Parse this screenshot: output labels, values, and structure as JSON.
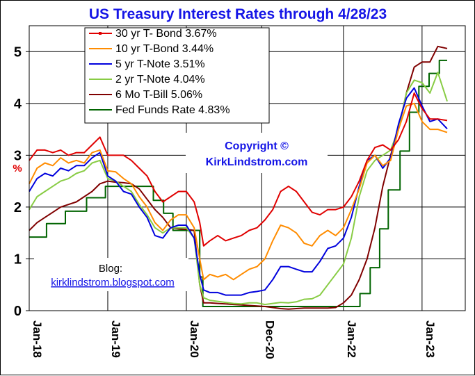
{
  "chart_data": {
    "type": "line",
    "title": "US Treasury Interest Rates through 4/28/23",
    "ylabel": "%",
    "ylim": [
      0,
      5.5
    ],
    "yticks": [
      0,
      1,
      2,
      3,
      4,
      5
    ],
    "xticks": [
      "Jan-18",
      "Jan-19",
      "Jan-20",
      "Dec-20",
      "Jan-22",
      "Jan-23"
    ],
    "grid": true,
    "legend_position": "top-left",
    "annotation_copyright": [
      "Copyright ©",
      "KirkLindstrom.com"
    ],
    "annotation_blog": [
      "Blog:",
      "kirklindstrom.blogspot.com"
    ],
    "series": [
      {
        "name": "30 yr T- Bond 3.67%",
        "color": "#e00000",
        "x": [
          2018.0,
          2018.1,
          2018.2,
          2018.3,
          2018.4,
          2018.5,
          2018.6,
          2018.7,
          2018.8,
          2018.9,
          2019.0,
          2019.1,
          2019.2,
          2019.3,
          2019.4,
          2019.5,
          2019.6,
          2019.7,
          2019.8,
          2019.9,
          2020.0,
          2020.1,
          2020.17,
          2020.22,
          2020.3,
          2020.4,
          2020.5,
          2020.6,
          2020.7,
          2020.8,
          2020.9,
          2021.0,
          2021.1,
          2021.2,
          2021.3,
          2021.4,
          2021.5,
          2021.6,
          2021.7,
          2021.8,
          2021.9,
          2022.0,
          2022.1,
          2022.2,
          2022.3,
          2022.4,
          2022.5,
          2022.6,
          2022.7,
          2022.8,
          2022.9,
          2023.0,
          2023.1,
          2023.2,
          2023.32
        ],
        "y": [
          2.9,
          3.1,
          3.1,
          3.05,
          3.1,
          3.0,
          3.05,
          3.05,
          3.2,
          3.35,
          3.0,
          3.0,
          3.0,
          2.9,
          2.75,
          2.6,
          2.3,
          2.1,
          2.2,
          2.3,
          2.3,
          2.1,
          1.7,
          1.25,
          1.35,
          1.45,
          1.35,
          1.4,
          1.45,
          1.55,
          1.6,
          1.75,
          1.95,
          2.3,
          2.4,
          2.3,
          2.1,
          1.9,
          1.85,
          1.95,
          1.95,
          2.0,
          2.2,
          2.5,
          2.9,
          3.15,
          3.2,
          3.1,
          3.3,
          3.65,
          4.2,
          3.9,
          3.7,
          3.7,
          3.67
        ]
      },
      {
        "name": "10 yr T-Bond 3.44%",
        "color": "#ff8c00",
        "x": [
          2018.0,
          2018.1,
          2018.2,
          2018.3,
          2018.4,
          2018.5,
          2018.6,
          2018.7,
          2018.8,
          2018.9,
          2019.0,
          2019.1,
          2019.2,
          2019.3,
          2019.4,
          2019.5,
          2019.6,
          2019.7,
          2019.8,
          2019.9,
          2020.0,
          2020.1,
          2020.17,
          2020.22,
          2020.3,
          2020.4,
          2020.5,
          2020.6,
          2020.7,
          2020.8,
          2020.9,
          2021.0,
          2021.1,
          2021.2,
          2021.3,
          2021.4,
          2021.5,
          2021.6,
          2021.7,
          2021.8,
          2021.9,
          2022.0,
          2022.1,
          2022.2,
          2022.3,
          2022.4,
          2022.5,
          2022.6,
          2022.7,
          2022.8,
          2022.9,
          2023.0,
          2023.1,
          2023.2,
          2023.32
        ],
        "y": [
          2.45,
          2.75,
          2.85,
          2.8,
          2.95,
          2.85,
          2.9,
          2.85,
          3.05,
          3.1,
          2.7,
          2.68,
          2.55,
          2.45,
          2.2,
          2.0,
          1.7,
          1.55,
          1.75,
          1.85,
          1.85,
          1.6,
          1.0,
          0.6,
          0.7,
          0.65,
          0.7,
          0.6,
          0.7,
          0.8,
          0.85,
          1.0,
          1.35,
          1.65,
          1.6,
          1.5,
          1.3,
          1.25,
          1.45,
          1.55,
          1.45,
          1.6,
          1.95,
          2.35,
          2.85,
          3.0,
          2.8,
          2.9,
          3.5,
          3.95,
          4.0,
          3.65,
          3.5,
          3.5,
          3.44
        ]
      },
      {
        "name": "5 yr T-Note 3.51%",
        "color": "#0000dd",
        "x": [
          2018.0,
          2018.1,
          2018.2,
          2018.3,
          2018.4,
          2018.5,
          2018.6,
          2018.7,
          2018.8,
          2018.9,
          2019.0,
          2019.1,
          2019.2,
          2019.3,
          2019.4,
          2019.5,
          2019.6,
          2019.7,
          2019.8,
          2019.9,
          2020.0,
          2020.1,
          2020.17,
          2020.22,
          2020.3,
          2020.4,
          2020.5,
          2020.6,
          2020.7,
          2020.8,
          2020.9,
          2021.0,
          2021.1,
          2021.2,
          2021.3,
          2021.4,
          2021.5,
          2021.6,
          2021.7,
          2021.8,
          2021.9,
          2022.0,
          2022.1,
          2022.2,
          2022.3,
          2022.4,
          2022.5,
          2022.6,
          2022.7,
          2022.8,
          2022.9,
          2023.0,
          2023.1,
          2023.2,
          2023.32
        ],
        "y": [
          2.3,
          2.55,
          2.65,
          2.6,
          2.75,
          2.7,
          2.8,
          2.8,
          2.95,
          3.05,
          2.6,
          2.5,
          2.3,
          2.25,
          2.0,
          1.8,
          1.45,
          1.4,
          1.6,
          1.65,
          1.65,
          1.4,
          0.7,
          0.4,
          0.35,
          0.35,
          0.3,
          0.3,
          0.3,
          0.35,
          0.37,
          0.4,
          0.6,
          0.85,
          0.85,
          0.8,
          0.75,
          0.75,
          0.95,
          1.2,
          1.25,
          1.4,
          1.8,
          2.4,
          2.9,
          3.0,
          2.75,
          2.95,
          3.6,
          4.1,
          4.3,
          3.95,
          3.65,
          3.7,
          3.51
        ]
      },
      {
        "name": "2 yr T-Note 4.04%",
        "color": "#88cc44",
        "x": [
          2018.0,
          2018.1,
          2018.2,
          2018.3,
          2018.4,
          2018.5,
          2018.6,
          2018.7,
          2018.8,
          2018.9,
          2019.0,
          2019.1,
          2019.2,
          2019.3,
          2019.4,
          2019.5,
          2019.6,
          2019.7,
          2019.8,
          2019.9,
          2020.0,
          2020.1,
          2020.17,
          2020.22,
          2020.3,
          2020.4,
          2020.5,
          2020.6,
          2020.7,
          2020.8,
          2020.9,
          2021.0,
          2021.1,
          2021.2,
          2021.3,
          2021.4,
          2021.5,
          2021.6,
          2021.7,
          2021.8,
          2021.9,
          2022.0,
          2022.1,
          2022.2,
          2022.3,
          2022.4,
          2022.5,
          2022.6,
          2022.7,
          2022.8,
          2022.9,
          2023.0,
          2023.1,
          2023.2,
          2023.32
        ],
        "y": [
          1.95,
          2.2,
          2.3,
          2.4,
          2.5,
          2.55,
          2.65,
          2.7,
          2.85,
          2.9,
          2.55,
          2.5,
          2.4,
          2.3,
          2.05,
          1.85,
          1.6,
          1.5,
          1.6,
          1.6,
          1.6,
          1.4,
          0.5,
          0.25,
          0.2,
          0.18,
          0.16,
          0.14,
          0.13,
          0.15,
          0.15,
          0.12,
          0.14,
          0.16,
          0.15,
          0.17,
          0.22,
          0.23,
          0.3,
          0.5,
          0.7,
          0.9,
          1.4,
          2.2,
          2.7,
          2.9,
          3.0,
          3.1,
          3.5,
          4.2,
          4.45,
          4.4,
          4.2,
          4.6,
          4.04
        ]
      },
      {
        "name": "6 Mo T-Bill 5.06%",
        "color": "#800000",
        "x": [
          2018.0,
          2018.1,
          2018.2,
          2018.3,
          2018.4,
          2018.5,
          2018.6,
          2018.7,
          2018.8,
          2018.9,
          2019.0,
          2019.1,
          2019.2,
          2019.3,
          2019.4,
          2019.5,
          2019.6,
          2019.7,
          2019.8,
          2019.9,
          2020.0,
          2020.1,
          2020.17,
          2020.22,
          2020.3,
          2020.4,
          2020.5,
          2020.6,
          2020.7,
          2020.8,
          2020.9,
          2021.0,
          2021.1,
          2021.2,
          2021.3,
          2021.4,
          2021.5,
          2021.6,
          2021.7,
          2021.8,
          2021.9,
          2022.0,
          2022.1,
          2022.2,
          2022.3,
          2022.4,
          2022.5,
          2022.6,
          2022.7,
          2022.8,
          2022.9,
          2023.0,
          2023.1,
          2023.2,
          2023.32
        ],
        "y": [
          1.55,
          1.7,
          1.8,
          1.9,
          2.0,
          2.05,
          2.1,
          2.2,
          2.3,
          2.45,
          2.5,
          2.48,
          2.47,
          2.45,
          2.35,
          2.15,
          1.95,
          1.8,
          1.6,
          1.58,
          1.57,
          1.55,
          0.5,
          0.15,
          0.15,
          0.14,
          0.13,
          0.12,
          0.11,
          0.1,
          0.09,
          0.08,
          0.06,
          0.04,
          0.03,
          0.04,
          0.05,
          0.05,
          0.05,
          0.05,
          0.06,
          0.15,
          0.3,
          0.6,
          1.0,
          1.6,
          2.4,
          3.0,
          3.5,
          4.2,
          4.7,
          4.8,
          4.8,
          5.1,
          5.06
        ]
      },
      {
        "name": "Fed Funds Rate 4.83%",
        "color": "#006400",
        "x": [
          2018.0,
          2018.22,
          2018.22,
          2018.46,
          2018.46,
          2018.73,
          2018.73,
          2018.97,
          2018.97,
          2019.58,
          2019.58,
          2019.71,
          2019.71,
          2019.83,
          2019.83,
          2020.17,
          2020.17,
          2020.21,
          2020.21,
          2022.21,
          2022.21,
          2022.34,
          2022.34,
          2022.46,
          2022.46,
          2022.57,
          2022.57,
          2022.72,
          2022.72,
          2022.84,
          2022.84,
          2022.96,
          2022.96,
          2023.09,
          2023.09,
          2023.22,
          2023.22,
          2023.32
        ],
        "y": [
          1.42,
          1.42,
          1.68,
          1.68,
          1.92,
          1.92,
          2.18,
          2.18,
          2.4,
          2.4,
          2.13,
          2.13,
          1.88,
          1.88,
          1.55,
          1.55,
          0.65,
          0.65,
          0.08,
          0.08,
          0.33,
          0.33,
          0.83,
          0.83,
          1.58,
          1.58,
          2.33,
          2.33,
          3.08,
          3.08,
          3.83,
          3.83,
          4.33,
          4.33,
          4.58,
          4.58,
          4.83,
          4.83
        ]
      }
    ]
  }
}
